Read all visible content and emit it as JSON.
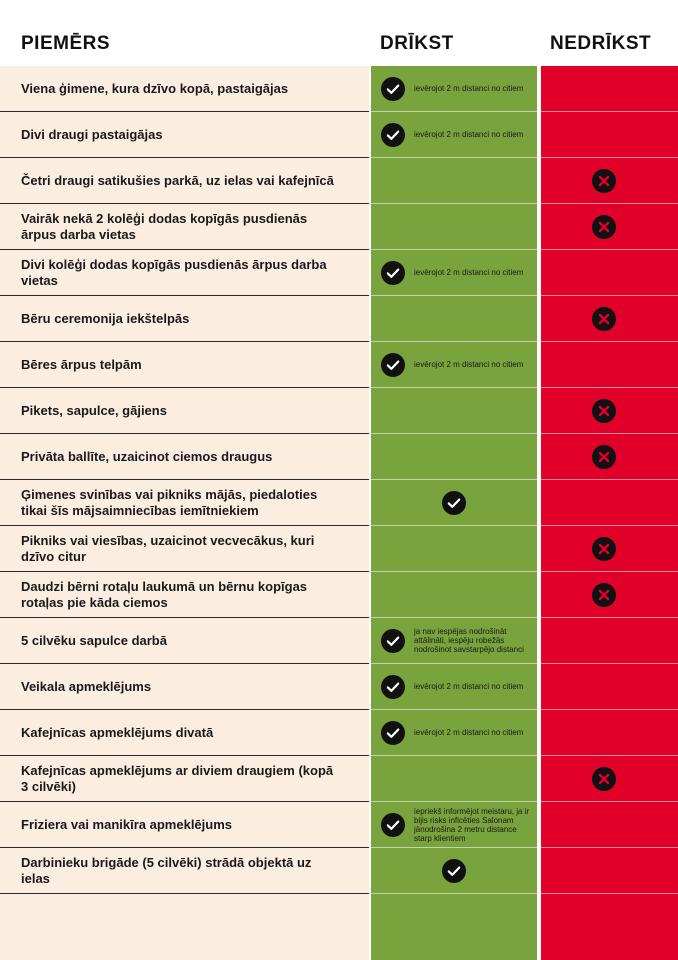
{
  "header": {
    "examples": "PIEMĒRS",
    "allowed": "DRĪKST",
    "forbidden": "NEDRĪKST"
  },
  "colors": {
    "examples_bg": "#fbeee1",
    "allowed_bg": "#78a33d",
    "forbidden_bg": "#e1002a",
    "icon_circle": "#111111"
  },
  "icons": {
    "allowed": "check-circle-icon",
    "forbidden": "x-circle-icon"
  },
  "rows": [
    {
      "example": "Viena ģimene, kura dzīvo kopā, pastaigājas",
      "allowed": true,
      "note": "ievērojot 2 m distanci no citiem"
    },
    {
      "example": "Divi draugi pastaigājas",
      "allowed": true,
      "note": "ievērojot 2 m distanci no citiem"
    },
    {
      "example": "Četri draugi satikušies parkā, uz ielas vai kafejnīcā",
      "allowed": false,
      "note": ""
    },
    {
      "example": "Vairāk nekā 2 kolēģi dodas kopīgās pusdienās ārpus darba vietas",
      "allowed": false,
      "note": ""
    },
    {
      "example": "Divi kolēģi dodas kopīgās pusdienās ārpus darba vietas",
      "allowed": true,
      "note": "ievērojot 2 m distanci no citiem"
    },
    {
      "example": "Bēru ceremonija iekštelpās",
      "allowed": false,
      "note": ""
    },
    {
      "example": "Bēres ārpus telpām",
      "allowed": true,
      "note": "ievērojot 2 m distanci no citiem"
    },
    {
      "example": "Pikets, sapulce, gājiens",
      "allowed": false,
      "note": ""
    },
    {
      "example": "Privāta ballīte, uzaicinot  ciemos draugus",
      "allowed": false,
      "note": ""
    },
    {
      "example": "Ģimenes svinības vai pikniks mājās, piedaloties tikai šīs mājsaimniecības iemītniekiem",
      "allowed": true,
      "note": ""
    },
    {
      "example": "Pikniks vai viesības, uzaicinot vecvecākus, kuri dzīvo citur",
      "allowed": false,
      "note": ""
    },
    {
      "example": "Daudzi bērni rotaļu laukumā un bērnu kopīgas rotaļas pie kāda ciemos",
      "allowed": false,
      "note": ""
    },
    {
      "example": "5 cilvēku sapulce darbā",
      "allowed": true,
      "note": "ja nav iespējas nodrošināt attālināti, iespēju robežās nodrošinot savstarpējo distanci"
    },
    {
      "example": "Veikala apmeklējums",
      "allowed": true,
      "note": "ievērojot 2 m distanci no citiem"
    },
    {
      "example": "Kafejnīcas apmeklējums divatā",
      "allowed": true,
      "note": "ievērojot 2 m distanci no citiem"
    },
    {
      "example": "Kafejnīcas apmeklējums ar diviem draugiem (kopā 3 cilvēki)",
      "allowed": false,
      "note": ""
    },
    {
      "example": "Friziera vai manikīra apmeklējums",
      "allowed": true,
      "note": "iepriekš informējot meistaru, ja ir bijis risks inficēties Salonam jānodrošina 2 metru distance starp klientiem"
    },
    {
      "example": "Darbinieku brigāde (5 cilvēki) strādā objektā uz ielas",
      "allowed": true,
      "note": ""
    }
  ]
}
